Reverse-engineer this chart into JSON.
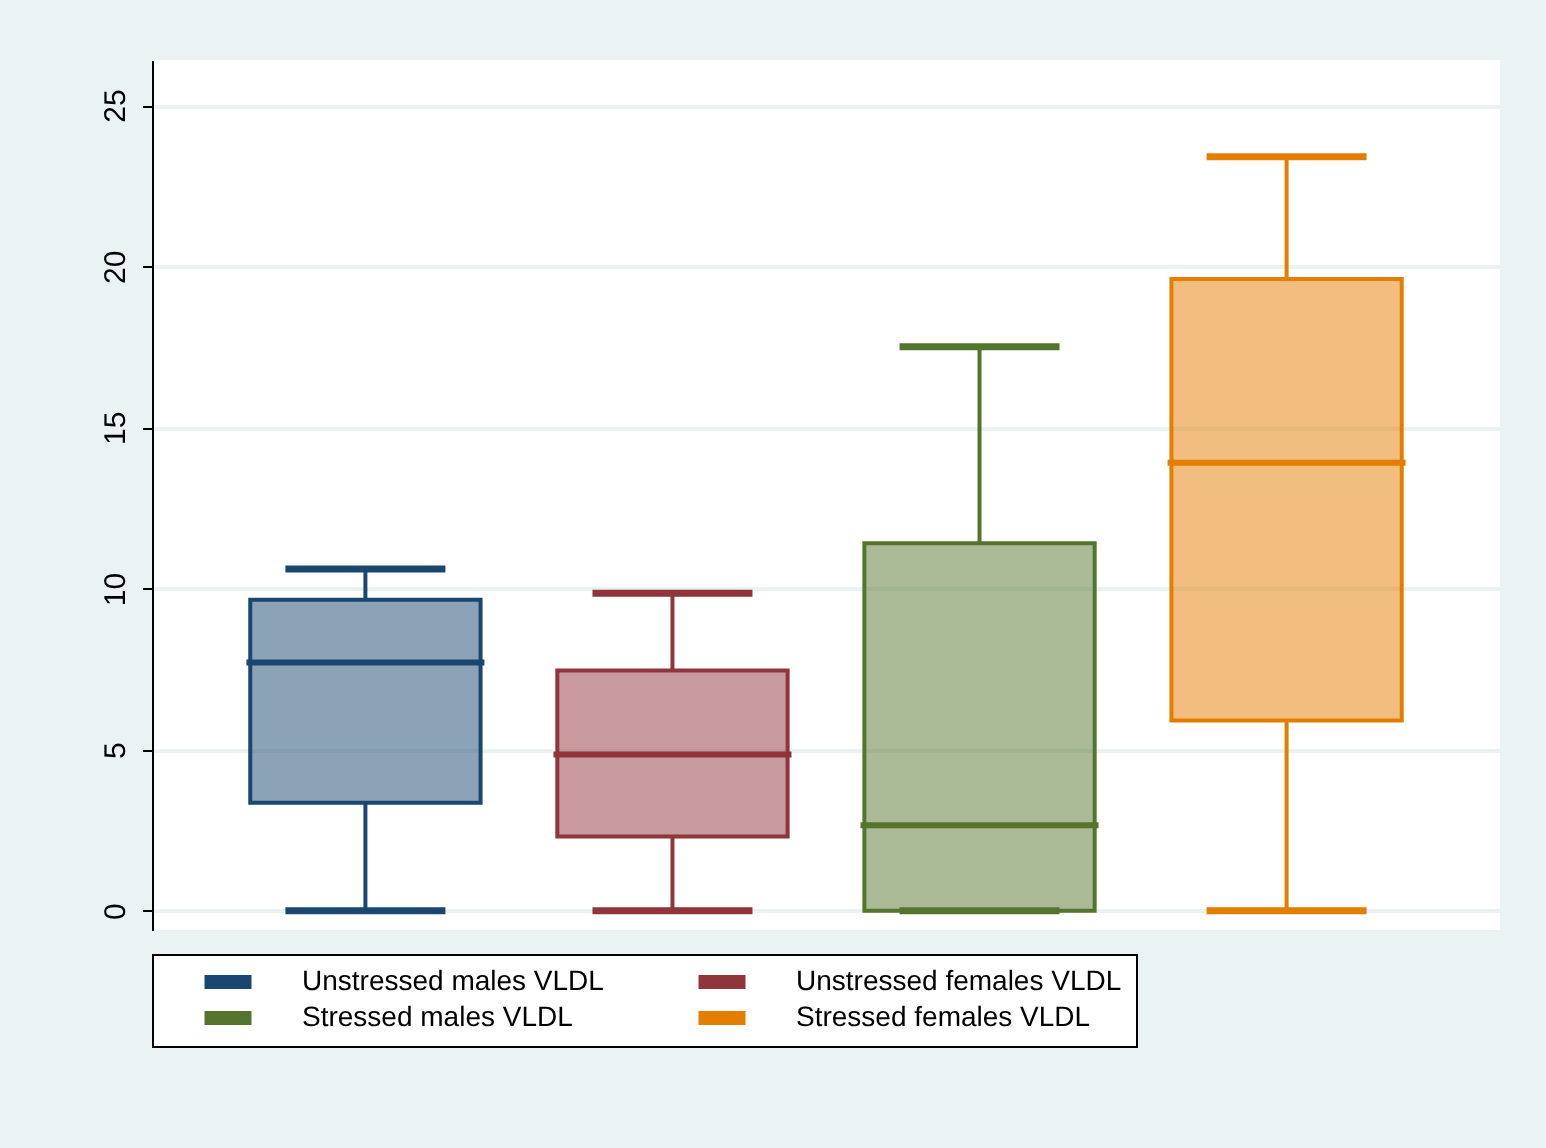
{
  "chart_data": {
    "type": "box",
    "categories": [
      null
    ],
    "series": [
      {
        "name": "Unstressed males VLDL",
        "color": "#1a476f",
        "boxes": [
          {
            "low": 0,
            "q1": 3.35,
            "median": 7.7,
            "q3": 9.65,
            "high": 10.6
          }
        ]
      },
      {
        "name": "Unstressed females VLDL",
        "color": "#90353b",
        "boxes": [
          {
            "low": 0,
            "q1": 2.3,
            "median": 4.85,
            "q3": 7.45,
            "high": 9.85
          }
        ]
      },
      {
        "name": "Stressed males VLDL",
        "color": "#55752f",
        "boxes": [
          {
            "low": 0,
            "q1": 0,
            "median": 2.65,
            "q3": 11.4,
            "high": 17.5
          }
        ]
      },
      {
        "name": "Stressed females VLDL",
        "color": "#e37e00",
        "boxes": [
          {
            "low": 0,
            "q1": 5.9,
            "median": 13.9,
            "q3": 19.6,
            "high": 23.4
          }
        ]
      }
    ],
    "ylim": [
      -0.6,
      26.4
    ],
    "yticks": [
      0,
      5,
      10,
      15,
      20,
      25
    ],
    "grid": "y",
    "legend": "bottom"
  }
}
